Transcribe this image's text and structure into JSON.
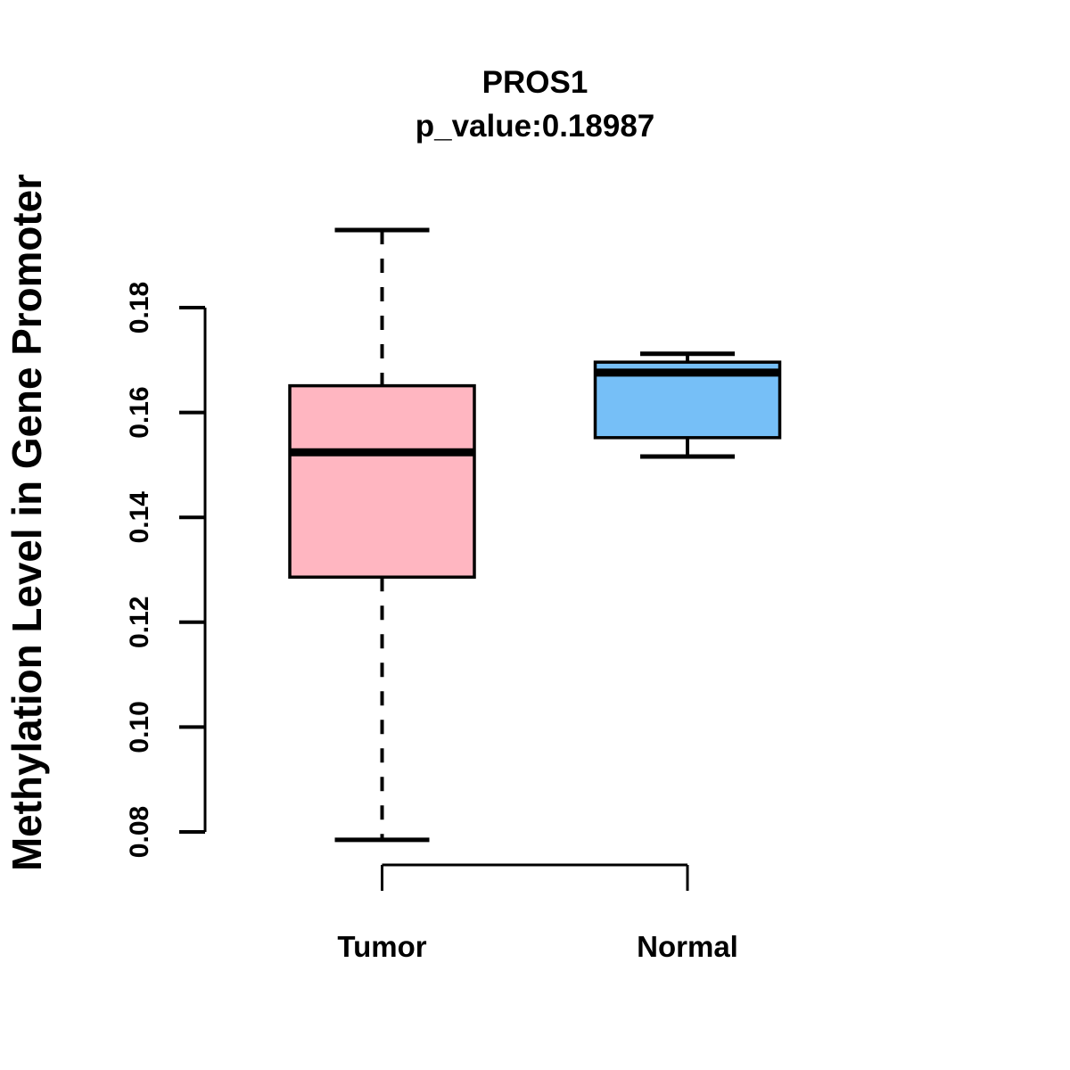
{
  "figure": {
    "background_color": "#FFFFFF",
    "stroke_color": "#000000"
  },
  "chart_data": {
    "type": "boxplot",
    "title": "PROS1",
    "subtitle": "p_value:0.18987",
    "ylabel": "Methylation Level in Gene Promoter",
    "xlabel": "",
    "grid": false,
    "legend": "none",
    "yticks": [
      "0.08",
      "0.10",
      "0.12",
      "0.14",
      "0.16",
      "0.18"
    ],
    "ylim": [
      0.0785,
      0.195
    ],
    "categories": [
      "Tumor",
      "Normal"
    ],
    "groups": [
      {
        "label": "Tumor",
        "color": "#FFB6C1",
        "whisker_low": 0.0785,
        "q1": 0.1286,
        "median": 0.1524,
        "q3": 0.1651,
        "whisker_high": 0.1948,
        "whisker_style": "dashed"
      },
      {
        "label": "Normal",
        "color": "#76BFF7",
        "whisker_low": 0.1516,
        "q1": 0.1552,
        "median": 0.1676,
        "q3": 0.1696,
        "whisker_high": 0.1712,
        "whisker_style": "solid"
      }
    ]
  }
}
